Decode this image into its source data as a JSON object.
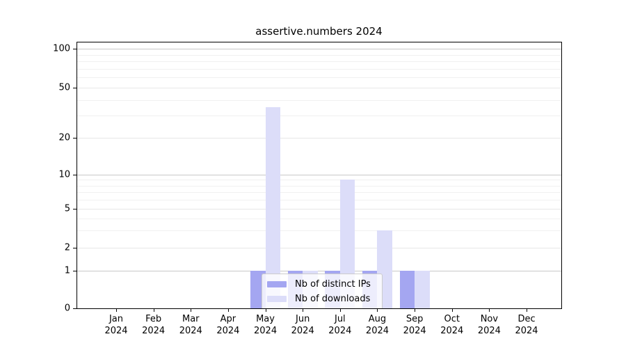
{
  "title": "assertive.numbers 2024",
  "chart_data": {
    "type": "bar",
    "categories": [
      "Jan 2024",
      "Feb 2024",
      "Mar 2024",
      "Apr 2024",
      "May 2024",
      "Jun 2024",
      "Jul 2024",
      "Aug 2024",
      "Sep 2024",
      "Oct 2024",
      "Nov 2024",
      "Dec 2024"
    ],
    "series": [
      {
        "name": "Nb of distinct IPs",
        "color": "#a4a6f1",
        "values": [
          0,
          0,
          0,
          0,
          1,
          1,
          1,
          1,
          1,
          0,
          0,
          0
        ]
      },
      {
        "name": "Nb of downloads",
        "color": "#dcddf9",
        "values": [
          0,
          0,
          0,
          0,
          35,
          1,
          9,
          3,
          1,
          0,
          0,
          0
        ]
      }
    ],
    "yticks": [
      0,
      1,
      2,
      5,
      10,
      20,
      50,
      100
    ],
    "minor_yticks": [
      3,
      4,
      6,
      7,
      8,
      9,
      30,
      40,
      60,
      70,
      80,
      90
    ],
    "ylim": [
      0,
      112
    ],
    "xlabel": "",
    "ylabel": "",
    "grid": true,
    "legend_position": "lower center",
    "colors": {
      "major_grid": "#c8c8c8",
      "labeled_grid": "#e7e7e7",
      "minor_grid": "#f0f0f0",
      "spine": "#000000"
    }
  }
}
